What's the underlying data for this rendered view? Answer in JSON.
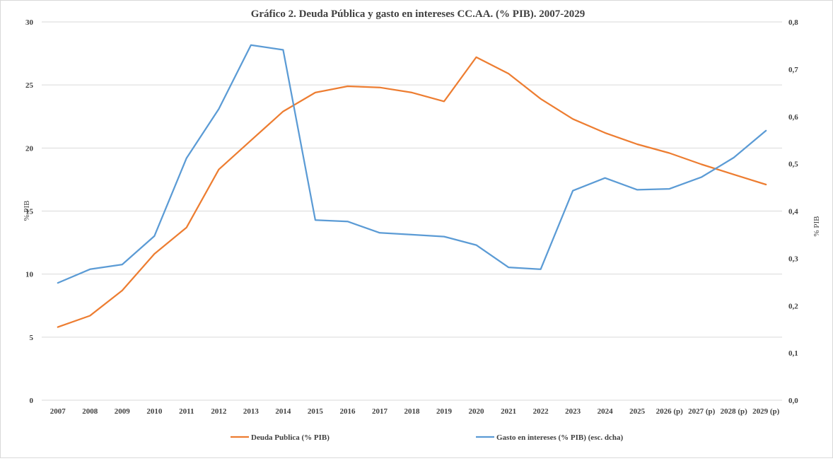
{
  "chart_data": {
    "type": "line",
    "title": "Gráfico 2. Deuda Pública y gasto en intereses CC.AA. (% PIB). 2007-2029",
    "ylabel": "% PIB",
    "y2label": "% PIB",
    "categories": [
      "2007",
      "2008",
      "2009",
      "2010",
      "2011",
      "2012",
      "2013",
      "2014",
      "2015",
      "2016",
      "2017",
      "2018",
      "2019",
      "2020",
      "2021",
      "2022",
      "2023",
      "2024",
      "2025",
      "2026 (p)",
      "2027 (p)",
      "2028 (p)",
      "2029 (p)"
    ],
    "yticks": [
      "0",
      "5",
      "10",
      "15",
      "20",
      "25",
      "30"
    ],
    "y2ticks": [
      "0,0",
      "0,1",
      "0,2",
      "0,3",
      "0,4",
      "0,5",
      "0,6",
      "0,7",
      "0,8"
    ],
    "ylim": [
      0,
      30
    ],
    "y2lim": [
      0,
      0.8
    ],
    "grid": true,
    "legend_position": "bottom",
    "series": [
      {
        "name": "Deuda Publica (% PIB)",
        "axis": "left",
        "color": "#ED7D31",
        "values": [
          5.8,
          6.7,
          8.7,
          11.6,
          13.7,
          18.3,
          20.6,
          22.9,
          24.4,
          24.9,
          24.8,
          24.4,
          23.7,
          27.2,
          25.9,
          23.9,
          22.3,
          21.2,
          20.3,
          19.6,
          18.7,
          17.9,
          17.1
        ]
      },
      {
        "name": "Gasto en intereses (% PIB) (esc. dcha)",
        "axis": "right",
        "color": "#5B9BD5",
        "values": [
          0.248,
          0.277,
          0.287,
          0.347,
          0.512,
          0.616,
          0.751,
          0.741,
          0.381,
          0.378,
          0.354,
          0.35,
          0.346,
          0.328,
          0.281,
          0.277,
          0.443,
          0.47,
          0.445,
          0.447,
          0.472,
          0.513,
          0.57
        ]
      }
    ]
  }
}
